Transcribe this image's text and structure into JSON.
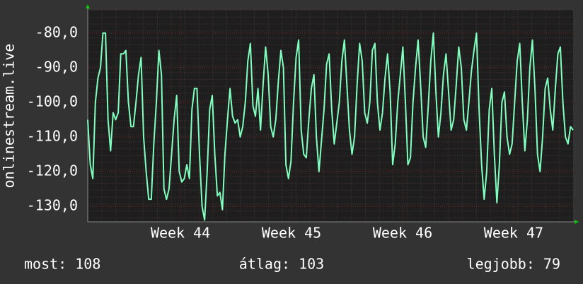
{
  "chart_data": {
    "type": "line",
    "ylabel": "onlinestream.live",
    "series": [
      {
        "name": "onlinestream.live",
        "color": "#80ffbf",
        "values": [
          -105,
          -118,
          -122,
          -100,
          -93,
          -90,
          -80,
          -80,
          -105,
          -114,
          -103,
          -105,
          -103,
          -86,
          -86,
          -85,
          -100,
          -107,
          -107,
          -100,
          -92,
          -87,
          -110,
          -120,
          -128,
          -128,
          -112,
          -100,
          -85,
          -92,
          -125,
          -128,
          -125,
          -115,
          -105,
          -98,
          -120,
          -123,
          -122,
          -118,
          -122,
          -102,
          -96,
          -96,
          -115,
          -130,
          -134,
          -120,
          -102,
          -98,
          -115,
          -127,
          -126,
          -131,
          -115,
          -105,
          -96,
          -104,
          -106,
          -105,
          -110,
          -107,
          -100,
          -88,
          -83,
          -101,
          -104,
          -96,
          -108,
          -95,
          -84,
          -92,
          -107,
          -110,
          -105,
          -94,
          -85,
          -90,
          -118,
          -122,
          -117,
          -100,
          -87,
          -82,
          -108,
          -115,
          -116,
          -105,
          -96,
          -92,
          -110,
          -120,
          -111,
          -102,
          -89,
          -86,
          -102,
          -112,
          -106,
          -100,
          -88,
          -82,
          -95,
          -108,
          -115,
          -110,
          -95,
          -83,
          -88,
          -103,
          -106,
          -100,
          -85,
          -83,
          -100,
          -108,
          -103,
          -93,
          -86,
          -97,
          -118,
          -112,
          -100,
          -92,
          -84,
          -100,
          -118,
          -116,
          -100,
          -90,
          -82,
          -95,
          -110,
          -113,
          -101,
          -88,
          -80,
          -97,
          -110,
          -103,
          -92,
          -86,
          -97,
          -108,
          -105,
          -95,
          -84,
          -90,
          -105,
          -108,
          -100,
          -91,
          -85,
          -80,
          -102,
          -118,
          -128,
          -120,
          -102,
          -96,
          -115,
          -129,
          -118,
          -100,
          -97,
          -110,
          -115,
          -112,
          -100,
          -88,
          -83,
          -100,
          -114,
          -105,
          -90,
          -82,
          -96,
          -115,
          -120,
          -110,
          -96,
          -93,
          -102,
          -108,
          -96,
          -86,
          -84,
          -100,
          -110,
          -112,
          -107,
          -108
        ]
      }
    ],
    "xlim": [
      0,
      191
    ],
    "xticks": [
      {
        "value": 36.5,
        "label": "Week 44"
      },
      {
        "value": 80.2,
        "label": "Week 45"
      },
      {
        "value": 123.9,
        "label": "Week 46"
      },
      {
        "value": 167.6,
        "label": "Week 47"
      }
    ],
    "ylim": [
      -134.5,
      -73.3
    ],
    "yticks": [
      {
        "value": -80,
        "label": "-80,0"
      },
      {
        "value": -90,
        "label": "-90,0"
      },
      {
        "value": -100,
        "label": "-100,0"
      },
      {
        "value": -110,
        "label": "-110,0"
      },
      {
        "value": -120,
        "label": "-120,0"
      },
      {
        "value": -130,
        "label": "-130,0"
      }
    ],
    "grid": true,
    "footer": [
      "most: 108",
      "átlag: 103",
      "legjobb: 79"
    ]
  }
}
